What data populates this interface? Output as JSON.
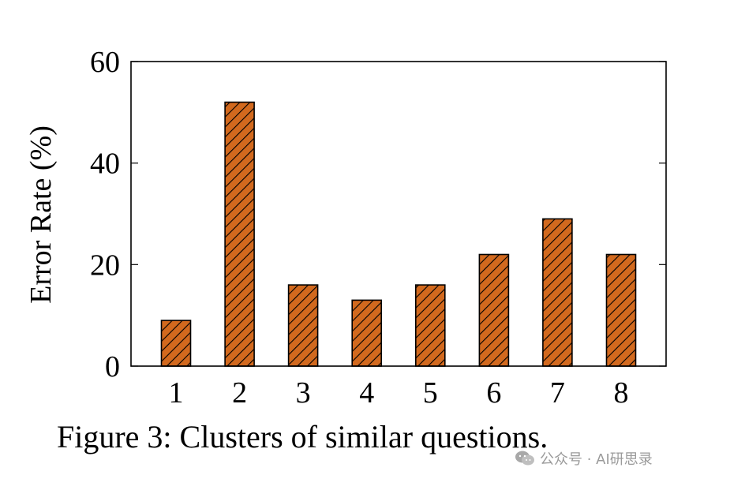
{
  "chart_data": {
    "type": "bar",
    "categories": [
      "1",
      "2",
      "3",
      "4",
      "5",
      "6",
      "7",
      "8"
    ],
    "values": [
      9,
      52,
      16,
      13,
      16,
      22,
      29,
      22
    ],
    "title": "",
    "xlabel": "",
    "ylabel": "Error Rate (%)",
    "ylim": [
      0,
      60
    ],
    "yticks": [
      "0",
      "20",
      "40",
      "60"
    ],
    "grid": false,
    "bar_color": "#d2691e",
    "bar_pattern": "diagonal-hatch"
  },
  "caption": "Figure 3: Clusters of similar questions.",
  "watermark": {
    "icon": "wechat-icon",
    "text": "公众号 · AI研思录"
  }
}
